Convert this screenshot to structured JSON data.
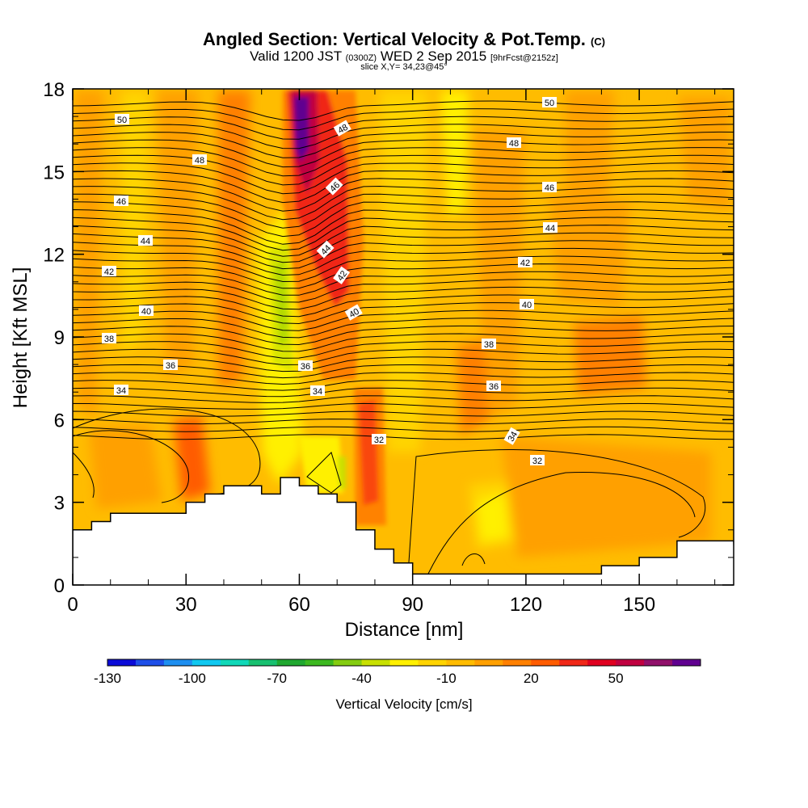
{
  "header": {
    "title": "Angled Section: Vertical Velocity & Pot.Temp.",
    "title_tag": "(C)",
    "valid_prefix": "Valid 1200 JST",
    "valid_utc": "(0300Z)",
    "valid_date": "WED 2 Sep 2015",
    "forecast": "[9hrFcst@2152z]",
    "slice": "slice X,Y= 34,23@45°"
  },
  "chart_data": {
    "type": "heatmap",
    "xlabel": "Distance [nm]",
    "ylabel": "Height [Kft MSL]",
    "xlim": [
      0,
      175
    ],
    "ylim": [
      0,
      18
    ],
    "x_ticks": [
      0,
      30,
      60,
      90,
      120,
      150
    ],
    "y_ticks": [
      0,
      3,
      6,
      9,
      12,
      15,
      18
    ],
    "colorbar": {
      "title": "Vertical Velocity [cm/s]",
      "tick_labels": [
        -130,
        -100,
        -70,
        -40,
        -10,
        20,
        50
      ],
      "levels_min": -130,
      "levels_step": 10,
      "colors": [
        "#0b0bd8",
        "#1e4fe8",
        "#1e8ff0",
        "#10c8f0",
        "#10d8b8",
        "#18c070",
        "#20a830",
        "#3cb820",
        "#84cc10",
        "#c8e000",
        "#fff000",
        "#ffd400",
        "#ffbc00",
        "#ffa000",
        "#ff8000",
        "#ff5c00",
        "#f02818",
        "#e00020",
        "#c00040",
        "#90106a",
        "#600090"
      ]
    },
    "terrain_kft": [
      [
        0,
        2.0
      ],
      [
        5,
        2.3
      ],
      [
        10,
        2.6
      ],
      [
        25,
        2.6
      ],
      [
        30,
        3.0
      ],
      [
        35,
        3.3
      ],
      [
        40,
        3.6
      ],
      [
        45,
        3.6
      ],
      [
        50,
        3.3
      ],
      [
        55,
        3.9
      ],
      [
        60,
        3.6
      ],
      [
        65,
        3.3
      ],
      [
        70,
        3.0
      ],
      [
        75,
        2.0
      ],
      [
        80,
        1.3
      ],
      [
        85,
        0.8
      ],
      [
        90,
        0.4
      ],
      [
        130,
        0.4
      ],
      [
        140,
        0.7
      ],
      [
        150,
        1.0
      ],
      [
        160,
        1.6
      ],
      [
        175,
        1.6
      ]
    ],
    "velocity_field": {
      "background": -5,
      "features": [
        {
          "x": 62,
          "y": 14.5,
          "value": 60
        },
        {
          "x": 66,
          "y": 12.5,
          "value": 35
        },
        {
          "x": 78,
          "y": 5.0,
          "value": 30
        },
        {
          "x": 55,
          "y": 10.0,
          "value": -40
        },
        {
          "x": 115,
          "y": 2.0,
          "value": -20
        },
        {
          "x": 145,
          "y": 8.5,
          "value": 15
        }
      ]
    },
    "isentropes": {
      "labels": [
        "50",
        "50",
        "48",
        "48",
        "48",
        "46",
        "46",
        "46",
        "44",
        "44",
        "44",
        "42",
        "42",
        "42",
        "40",
        "40",
        "40",
        "38",
        "38",
        "36",
        "36",
        "36",
        "34",
        "34",
        "34",
        "32",
        "32"
      ]
    }
  }
}
